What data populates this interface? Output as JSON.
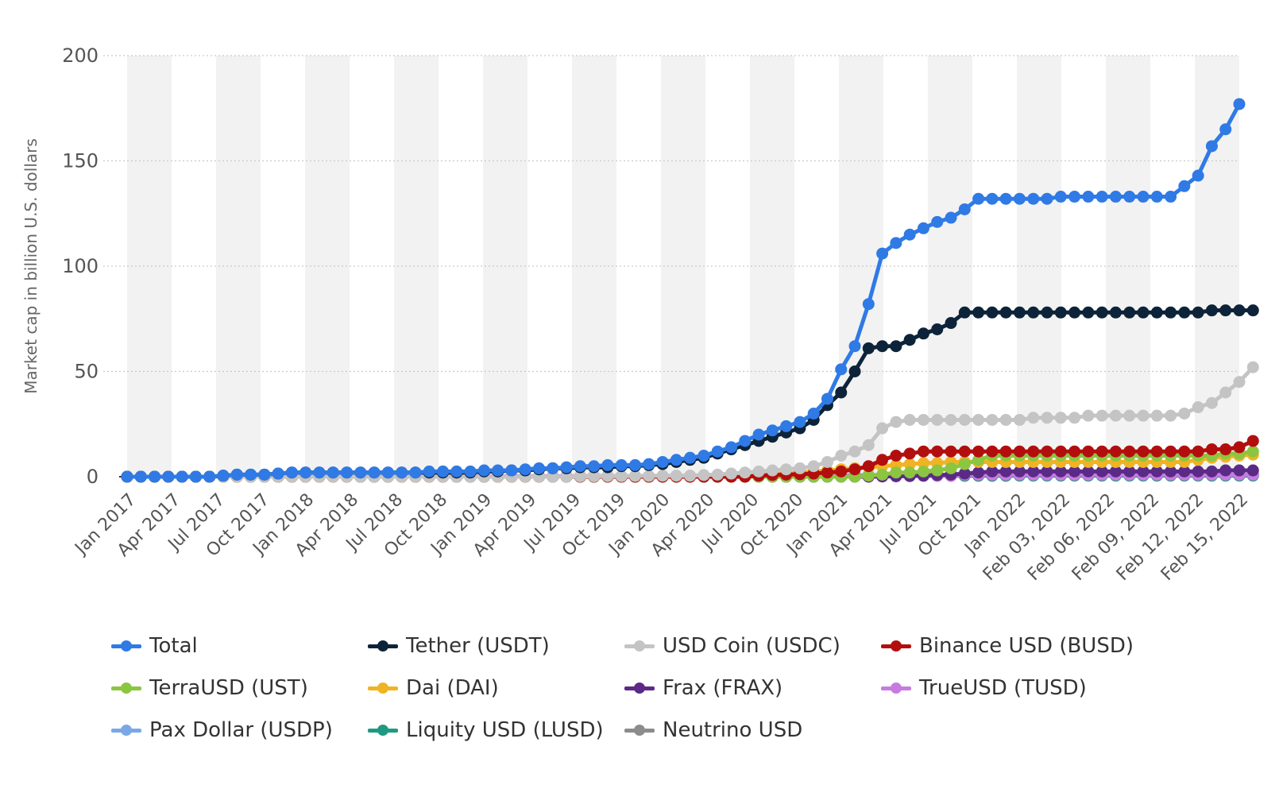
{
  "chart_data": {
    "type": "line",
    "title": "",
    "xlabel": "",
    "ylabel": "Market cap in billion U.S. dollars",
    "ylim": [
      0,
      200
    ],
    "yticks": [
      0,
      50,
      100,
      150,
      200
    ],
    "grid": true,
    "legend_position": "bottom",
    "x_tick_labels": [
      "Jan 2017",
      "Apr 2017",
      "Jul 2017",
      "Oct 2017",
      "Jan 2018",
      "Apr 2018",
      "Jul 2018",
      "Oct 2018",
      "Jan 2019",
      "Apr 2019",
      "Jul 2019",
      "Oct 2019",
      "Jan 2020",
      "Apr 2020",
      "Jul 2020",
      "Oct 2020",
      "Jan 2021",
      "Apr 2021",
      "Jul 2021",
      "Oct 2021",
      "Jan 2022",
      "Feb 03, 2022",
      "Feb 06, 2022",
      "Feb 09, 2022",
      "Feb 12, 2022",
      "Feb 15, 2022"
    ],
    "series": [
      {
        "name": "Total",
        "color": "#2f7ae5",
        "values": [
          0,
          0,
          0,
          0,
          0,
          0,
          0,
          0.5,
          1,
          1,
          1,
          1.5,
          2,
          2,
          2,
          2,
          2,
          2,
          2,
          2,
          2,
          2,
          2.5,
          2.5,
          2.5,
          2.5,
          3,
          3,
          3,
          3.5,
          4,
          4,
          4.5,
          5,
          5,
          5.5,
          5.5,
          5.5,
          6,
          7,
          8,
          9,
          10,
          12,
          14,
          17,
          20,
          22,
          24,
          26,
          30,
          37,
          51,
          62,
          82,
          106,
          111,
          115,
          118,
          121,
          123,
          127,
          132,
          132,
          132,
          132,
          132,
          132,
          133,
          133,
          133,
          133,
          133,
          133,
          133,
          133,
          133,
          138,
          143,
          157,
          165,
          177
        ]
      },
      {
        "name": "Tether (USDT)",
        "color": "#0d2339",
        "values": [
          0,
          0,
          0,
          0,
          0,
          0,
          0,
          0.5,
          1,
          1,
          1,
          1.5,
          2,
          2,
          2,
          2,
          2,
          2,
          2,
          2,
          2,
          2,
          2,
          2,
          2,
          2,
          2.5,
          2.5,
          3,
          3,
          3.5,
          4,
          4,
          4.5,
          4.5,
          4.5,
          5,
          5,
          5.5,
          6,
          7,
          8,
          9,
          11,
          13,
          15,
          17,
          19,
          21,
          23,
          27,
          34,
          40,
          50,
          61,
          62,
          62,
          65,
          68,
          70,
          73,
          78,
          78,
          78,
          78,
          78,
          78,
          78,
          78,
          78,
          78,
          78,
          78,
          78,
          78,
          78,
          78,
          78,
          78,
          79,
          79,
          79,
          79
        ]
      },
      {
        "name": "USD Coin (USDC)",
        "color": "#c4c4c4",
        "values": [
          0,
          0,
          0,
          0,
          0,
          0,
          0,
          0,
          0,
          0,
          0,
          0,
          0,
          0,
          0,
          0,
          0,
          0,
          0,
          0,
          0,
          0,
          0,
          0,
          0,
          0,
          0,
          0,
          0,
          0,
          0,
          0,
          0,
          0.2,
          0.2,
          0.3,
          0.3,
          0.4,
          0.4,
          0.5,
          0.5,
          0.5,
          0.8,
          1,
          1.5,
          2,
          2.5,
          3,
          3.5,
          4,
          5,
          7,
          10,
          12,
          15,
          23,
          26,
          27,
          27,
          27,
          27,
          27,
          27,
          27,
          27,
          27,
          28,
          28,
          28,
          28,
          29,
          29,
          29,
          29,
          29,
          29,
          29,
          30,
          33,
          35,
          40,
          45,
          52
        ]
      },
      {
        "name": "Binance USD (BUSD)",
        "color": "#b30e0e",
        "values": [
          0,
          0,
          0,
          0,
          0,
          0,
          0,
          0,
          0,
          0,
          0,
          0,
          0,
          0,
          0,
          0,
          0,
          0,
          0,
          0,
          0,
          0,
          0,
          0,
          0,
          0,
          0,
          0,
          0,
          0,
          0,
          0,
          0,
          0,
          0,
          0,
          0,
          0,
          0,
          0,
          0,
          0,
          0,
          0,
          0,
          0,
          0.5,
          0.8,
          1,
          1.2,
          1.5,
          2,
          2.5,
          3.5,
          5,
          8,
          10,
          11,
          12,
          12,
          12,
          12,
          12,
          12,
          12,
          12,
          12,
          12,
          12,
          12,
          12,
          12,
          12,
          12,
          12,
          12,
          12,
          12,
          12,
          13,
          13,
          14,
          17
        ]
      },
      {
        "name": "TerraUSD (UST)",
        "color": "#8cc540",
        "values": [
          0,
          0,
          0,
          0,
          0,
          0,
          0,
          0,
          0,
          0,
          0,
          0,
          0,
          0,
          0,
          0,
          0,
          0,
          0,
          0,
          0,
          0,
          0,
          0,
          0,
          0,
          0,
          0,
          0,
          0,
          0,
          0,
          0,
          0,
          0,
          0,
          0,
          0,
          0,
          0,
          0,
          0,
          0,
          0,
          0,
          0,
          0,
          0,
          0,
          0,
          0,
          0,
          0,
          0,
          0.5,
          1,
          2,
          2,
          2.5,
          3,
          4,
          6,
          8,
          10,
          10,
          10,
          10,
          10,
          10,
          10,
          10,
          10,
          10,
          10,
          10,
          10,
          10,
          10,
          10,
          10,
          11,
          11,
          12
        ]
      },
      {
        "name": "Dai (DAI)",
        "color": "#f0b323",
        "values": [
          0,
          0,
          0,
          0,
          0,
          0,
          0,
          0,
          0,
          0,
          0,
          0,
          0,
          0,
          0,
          0,
          0,
          0,
          0,
          0,
          0,
          0,
          0,
          0,
          0,
          0,
          0,
          0,
          0,
          0,
          0,
          0,
          0,
          0,
          0,
          0,
          0,
          0,
          0,
          0,
          0,
          0,
          0,
          0.3,
          0.5,
          0.8,
          1,
          1.2,
          1.5,
          2,
          2.5,
          3,
          3.5,
          4,
          4.5,
          5,
          5.5,
          6,
          6.5,
          6.5,
          7,
          7,
          7,
          7,
          7,
          7,
          7,
          7,
          7,
          7,
          7,
          7,
          7,
          7,
          7,
          7,
          7,
          7,
          8,
          9,
          9.5,
          10,
          10.5
        ]
      },
      {
        "name": "Frax (FRAX)",
        "color": "#5b2a86",
        "values": [
          0,
          0,
          0,
          0,
          0,
          0,
          0,
          0,
          0,
          0,
          0,
          0,
          0,
          0,
          0,
          0,
          0,
          0,
          0,
          0,
          0,
          0,
          0,
          0,
          0,
          0,
          0,
          0,
          0,
          0,
          0,
          0,
          0,
          0,
          0,
          0,
          0,
          0,
          0,
          0,
          0,
          0,
          0,
          0,
          0,
          0,
          0,
          0,
          0,
          0,
          0,
          0,
          0,
          0,
          0,
          0.1,
          0.2,
          0.3,
          0.5,
          0.8,
          1,
          1.5,
          2,
          2.5,
          2.5,
          2.5,
          2.5,
          2.5,
          2.5,
          2.5,
          2.5,
          2.5,
          2.5,
          2.5,
          2.5,
          2.5,
          2.5,
          2.5,
          2.5,
          2.5,
          3,
          3,
          3
        ]
      },
      {
        "name": "TrueUSD (TUSD)",
        "color": "#c77be0",
        "values": [
          0,
          0,
          0,
          0,
          0,
          0,
          0,
          0.1,
          0.2,
          0.2,
          0.2,
          0.2,
          0.2,
          0.2,
          0.2,
          0.2,
          0.2,
          0.2,
          0.2,
          0.2,
          0.2,
          0.2,
          0.2,
          0.2,
          0.2,
          0.2,
          0.2,
          0.2,
          0.2,
          0.2,
          0.2,
          0.2,
          0.2,
          0.3,
          0.3,
          0.3,
          0.3,
          0.3,
          0.3,
          0.3,
          0.4,
          0.4,
          0.4,
          0.4,
          0.5,
          0.5,
          0.5,
          0.5,
          0.5,
          0.5,
          0.5,
          0.5,
          0.5,
          0.5,
          0.5,
          0.5,
          0.5,
          0.5,
          0.5,
          0.5,
          0.5,
          1,
          1,
          1,
          1,
          1,
          1,
          1,
          1,
          1,
          1,
          1,
          1,
          1,
          1,
          1,
          1,
          1,
          1,
          1,
          1,
          1,
          1
        ]
      },
      {
        "name": "Pax Dollar (USDP)",
        "color": "#7aa8e6",
        "values": [
          0,
          0,
          0,
          0,
          0,
          0,
          0,
          0,
          0,
          0.1,
          0.1,
          0.2,
          0.2,
          0.2,
          0.2,
          0.2,
          0.2,
          0.2,
          0.2,
          0.2,
          0.2,
          0.2,
          0.2,
          0.2,
          0.2,
          0.2,
          0.2,
          0.2,
          0.2,
          0.2,
          0.2,
          0.2,
          0.2,
          0.2,
          0.2,
          0.2,
          0.2,
          0.2,
          0.2,
          0.2,
          0.2,
          0.2,
          0.2,
          0.2,
          0.2,
          0.2,
          0.3,
          0.3,
          0.3,
          0.4,
          0.5,
          0.5,
          0.6,
          0.7,
          0.8,
          0.8,
          0.9,
          0.9,
          0.9,
          0.9,
          0.9,
          1,
          1,
          1,
          1,
          1,
          1,
          1,
          1,
          1,
          1,
          1,
          1,
          1,
          1,
          1,
          1,
          1,
          1,
          1,
          1,
          1,
          1
        ]
      },
      {
        "name": "Liquity USD (LUSD)",
        "color": "#1f9a80",
        "values": [
          0,
          0,
          0,
          0,
          0,
          0,
          0,
          0,
          0,
          0,
          0,
          0,
          0,
          0,
          0,
          0,
          0,
          0,
          0,
          0,
          0,
          0,
          0,
          0,
          0,
          0,
          0,
          0,
          0,
          0,
          0,
          0,
          0,
          0,
          0,
          0,
          0,
          0,
          0,
          0,
          0,
          0,
          0,
          0,
          0,
          0,
          0,
          0,
          0,
          0,
          0,
          0,
          0,
          0,
          0.2,
          0.5,
          0.6,
          0.6,
          0.6,
          0.6,
          0.6,
          0.6,
          0.6,
          0.6,
          0.6,
          0.6,
          0.6,
          0.6,
          0.6,
          0.6,
          0.6,
          0.6,
          0.6,
          0.6,
          0.6,
          0.6,
          0.6,
          0.6,
          0.6,
          0.6,
          0.6,
          0.6,
          0.6
        ]
      },
      {
        "name": "Neutrino USD",
        "color": "#8c8c8c",
        "values": [
          0,
          0,
          0,
          0,
          0,
          0,
          0,
          0,
          0,
          0,
          0,
          0,
          0,
          0,
          0,
          0,
          0,
          0,
          0,
          0,
          0,
          0,
          0,
          0,
          0,
          0,
          0,
          0,
          0,
          0,
          0,
          0,
          0,
          0,
          0,
          0,
          0,
          0,
          0,
          0,
          0,
          0,
          0,
          0,
          0,
          0,
          0,
          0,
          0,
          0,
          0,
          0,
          0.1,
          0.2,
          0.3,
          0.4,
          0.4,
          0.4,
          0.4,
          0.4,
          0.4,
          0.4,
          0.4,
          0.4,
          0.4,
          0.5,
          0.5,
          0.5,
          0.5,
          0.5,
          0.5,
          0.5,
          0.5,
          0.5,
          0.5,
          0.5,
          0.5,
          0.5,
          0.5,
          0.5,
          0.5,
          0.5,
          0.5
        ]
      }
    ]
  }
}
